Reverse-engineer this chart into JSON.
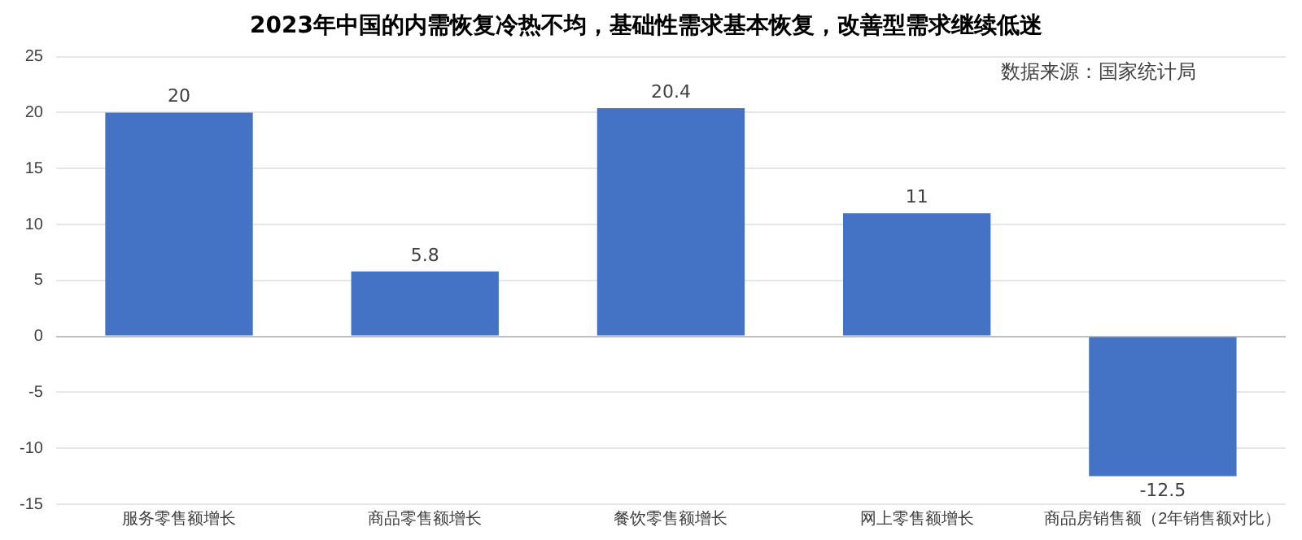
{
  "chart_data": {
    "type": "bar",
    "title": "2023年中国的内需恢复冷热不均，基础性需求基本恢复，改善型需求继续低迷",
    "categories": [
      "服务零售额增长",
      "商品零售额增长",
      "餐饮零售额增长",
      "网上零售额增长",
      "商品房销售额（2年销售额对比）"
    ],
    "values": [
      20,
      5.8,
      20.4,
      11,
      -12.5
    ],
    "color": "#4472c4",
    "ylim": [
      -15,
      25
    ],
    "yticks": [
      -15,
      -10,
      -5,
      0,
      5,
      10,
      15,
      20,
      25
    ],
    "grid": "y",
    "data_labels": true,
    "annotations": [
      "数据来源：国家统计局"
    ]
  }
}
